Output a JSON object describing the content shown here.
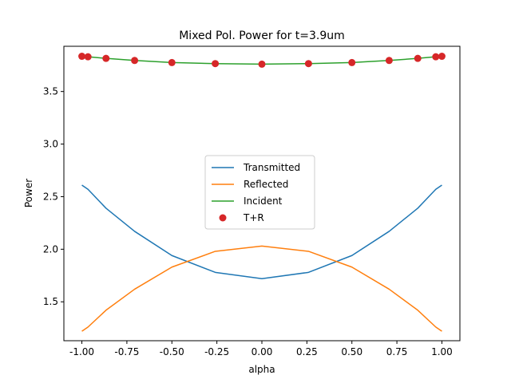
{
  "chart_data": {
    "type": "line",
    "title": "Mixed Pol. Power for t=3.9um",
    "xlabel": "alpha",
    "ylabel": "Power",
    "xlim": [
      -1.1,
      1.1
    ],
    "ylim": [
      1.13,
      3.93
    ],
    "x_ticks": [
      "-1.00",
      "-0.75",
      "-0.50",
      "-0.25",
      "0.00",
      "0.25",
      "0.50",
      "0.75",
      "1.00"
    ],
    "y_ticks": [
      "1.5",
      "2.0",
      "2.5",
      "3.0",
      "3.5"
    ],
    "grid": false,
    "legend_placement": "center",
    "x": [
      -1.0,
      -0.966,
      -0.866,
      -0.707,
      -0.5,
      -0.259,
      0.0,
      0.259,
      0.5,
      0.707,
      0.866,
      0.966,
      1.0
    ],
    "series": [
      {
        "name": "Transmitted",
        "style": "line",
        "color": "#1f77b4",
        "values": [
          2.61,
          2.57,
          2.39,
          2.17,
          1.94,
          1.78,
          1.72,
          1.78,
          1.94,
          2.17,
          2.39,
          2.57,
          2.61
        ]
      },
      {
        "name": "Reflected",
        "style": "line",
        "color": "#ff7f0e",
        "values": [
          1.22,
          1.26,
          1.42,
          1.62,
          1.83,
          1.98,
          2.03,
          1.98,
          1.83,
          1.62,
          1.42,
          1.26,
          1.22
        ]
      },
      {
        "name": "Incident",
        "style": "line",
        "color": "#2ca02c",
        "values": [
          3.835,
          3.83,
          3.815,
          3.795,
          3.775,
          3.765,
          3.76,
          3.765,
          3.775,
          3.795,
          3.815,
          3.83,
          3.835
        ]
      },
      {
        "name": "T+R",
        "style": "marker",
        "color": "#d62728",
        "values": [
          3.835,
          3.83,
          3.815,
          3.795,
          3.775,
          3.765,
          3.76,
          3.765,
          3.775,
          3.795,
          3.815,
          3.83,
          3.835
        ]
      }
    ]
  }
}
